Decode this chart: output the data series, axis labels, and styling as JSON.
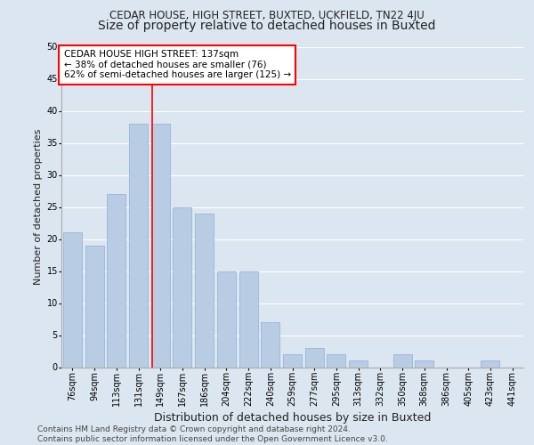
{
  "title": "CEDAR HOUSE, HIGH STREET, BUXTED, UCKFIELD, TN22 4JU",
  "subtitle": "Size of property relative to detached houses in Buxted",
  "xlabel": "Distribution of detached houses by size in Buxted",
  "ylabel": "Number of detached properties",
  "categories": [
    "76sqm",
    "94sqm",
    "113sqm",
    "131sqm",
    "149sqm",
    "167sqm",
    "186sqm",
    "204sqm",
    "222sqm",
    "240sqm",
    "259sqm",
    "277sqm",
    "295sqm",
    "313sqm",
    "332sqm",
    "350sqm",
    "368sqm",
    "386sqm",
    "405sqm",
    "423sqm",
    "441sqm"
  ],
  "values": [
    21,
    19,
    27,
    38,
    38,
    25,
    24,
    15,
    15,
    7,
    2,
    3,
    2,
    1,
    0,
    2,
    1,
    0,
    0,
    1,
    0
  ],
  "bar_color": "#b8cce4",
  "bar_edge_color": "#8bafd4",
  "background_color": "#dce6f0",
  "grid_color": "#ffffff",
  "vline_x_index": 3.62,
  "vline_color": "red",
  "annotation_text": "CEDAR HOUSE HIGH STREET: 137sqm\n← 38% of detached houses are smaller (76)\n62% of semi-detached houses are larger (125) →",
  "annotation_box_color": "white",
  "annotation_box_edge_color": "red",
  "ylim": [
    0,
    50
  ],
  "yticks": [
    0,
    5,
    10,
    15,
    20,
    25,
    30,
    35,
    40,
    45,
    50
  ],
  "footer": "Contains HM Land Registry data © Crown copyright and database right 2024.\nContains public sector information licensed under the Open Government Licence v3.0.",
  "title_fontsize": 8.5,
  "subtitle_fontsize": 10,
  "xlabel_fontsize": 9,
  "ylabel_fontsize": 8,
  "tick_fontsize": 7,
  "annotation_fontsize": 7.5,
  "footer_fontsize": 6.5
}
